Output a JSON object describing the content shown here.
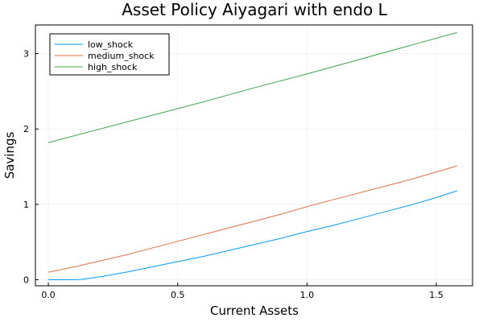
{
  "chart_data": {
    "type": "line",
    "title": "Asset Policy Aiyagari with endo L",
    "xlabel": "Current Assets",
    "ylabel": "Savings",
    "xlim": [
      -0.05,
      1.64
    ],
    "ylim": [
      -0.08,
      3.38
    ],
    "xticks": [
      0,
      0.5,
      1,
      1.5
    ],
    "xtick_labels": [
      "0.0",
      "0.5",
      "1.0",
      "1.5"
    ],
    "yticks": [
      0,
      1,
      2,
      3
    ],
    "ytick_labels": [
      "0",
      "1",
      "2",
      "3"
    ],
    "grid": true,
    "legend": "top-left",
    "series": [
      {
        "name": "low_shock",
        "color": "#009af9",
        "x": [
          0,
          0.05,
          0.1,
          0.13,
          0.16,
          0.2,
          0.3,
          0.4,
          0.5,
          0.6,
          0.7,
          0.8,
          0.9,
          1.0,
          1.1,
          1.2,
          1.3,
          1.4,
          1.5,
          1.58
        ],
        "y": [
          0,
          0,
          0,
          0.005,
          0.02,
          0.04,
          0.1,
          0.17,
          0.24,
          0.31,
          0.39,
          0.47,
          0.55,
          0.64,
          0.72,
          0.81,
          0.9,
          0.99,
          1.09,
          1.18
        ]
      },
      {
        "name": "medium_shock",
        "color": "#e26f46",
        "x": [
          0,
          0.1,
          0.2,
          0.3,
          0.4,
          0.5,
          0.6,
          0.7,
          0.8,
          0.9,
          1.0,
          1.1,
          1.2,
          1.3,
          1.4,
          1.5,
          1.58
        ],
        "y": [
          0.1,
          0.17,
          0.25,
          0.33,
          0.42,
          0.51,
          0.6,
          0.69,
          0.78,
          0.87,
          0.97,
          1.06,
          1.15,
          1.24,
          1.33,
          1.43,
          1.51
        ]
      },
      {
        "name": "high_shock",
        "color": "#3da44d",
        "x": [
          0,
          0.2,
          0.4,
          0.6,
          0.8,
          1.0,
          1.2,
          1.4,
          1.58
        ],
        "y": [
          1.82,
          2.0,
          2.18,
          2.36,
          2.55,
          2.73,
          2.92,
          3.11,
          3.28
        ]
      }
    ]
  }
}
